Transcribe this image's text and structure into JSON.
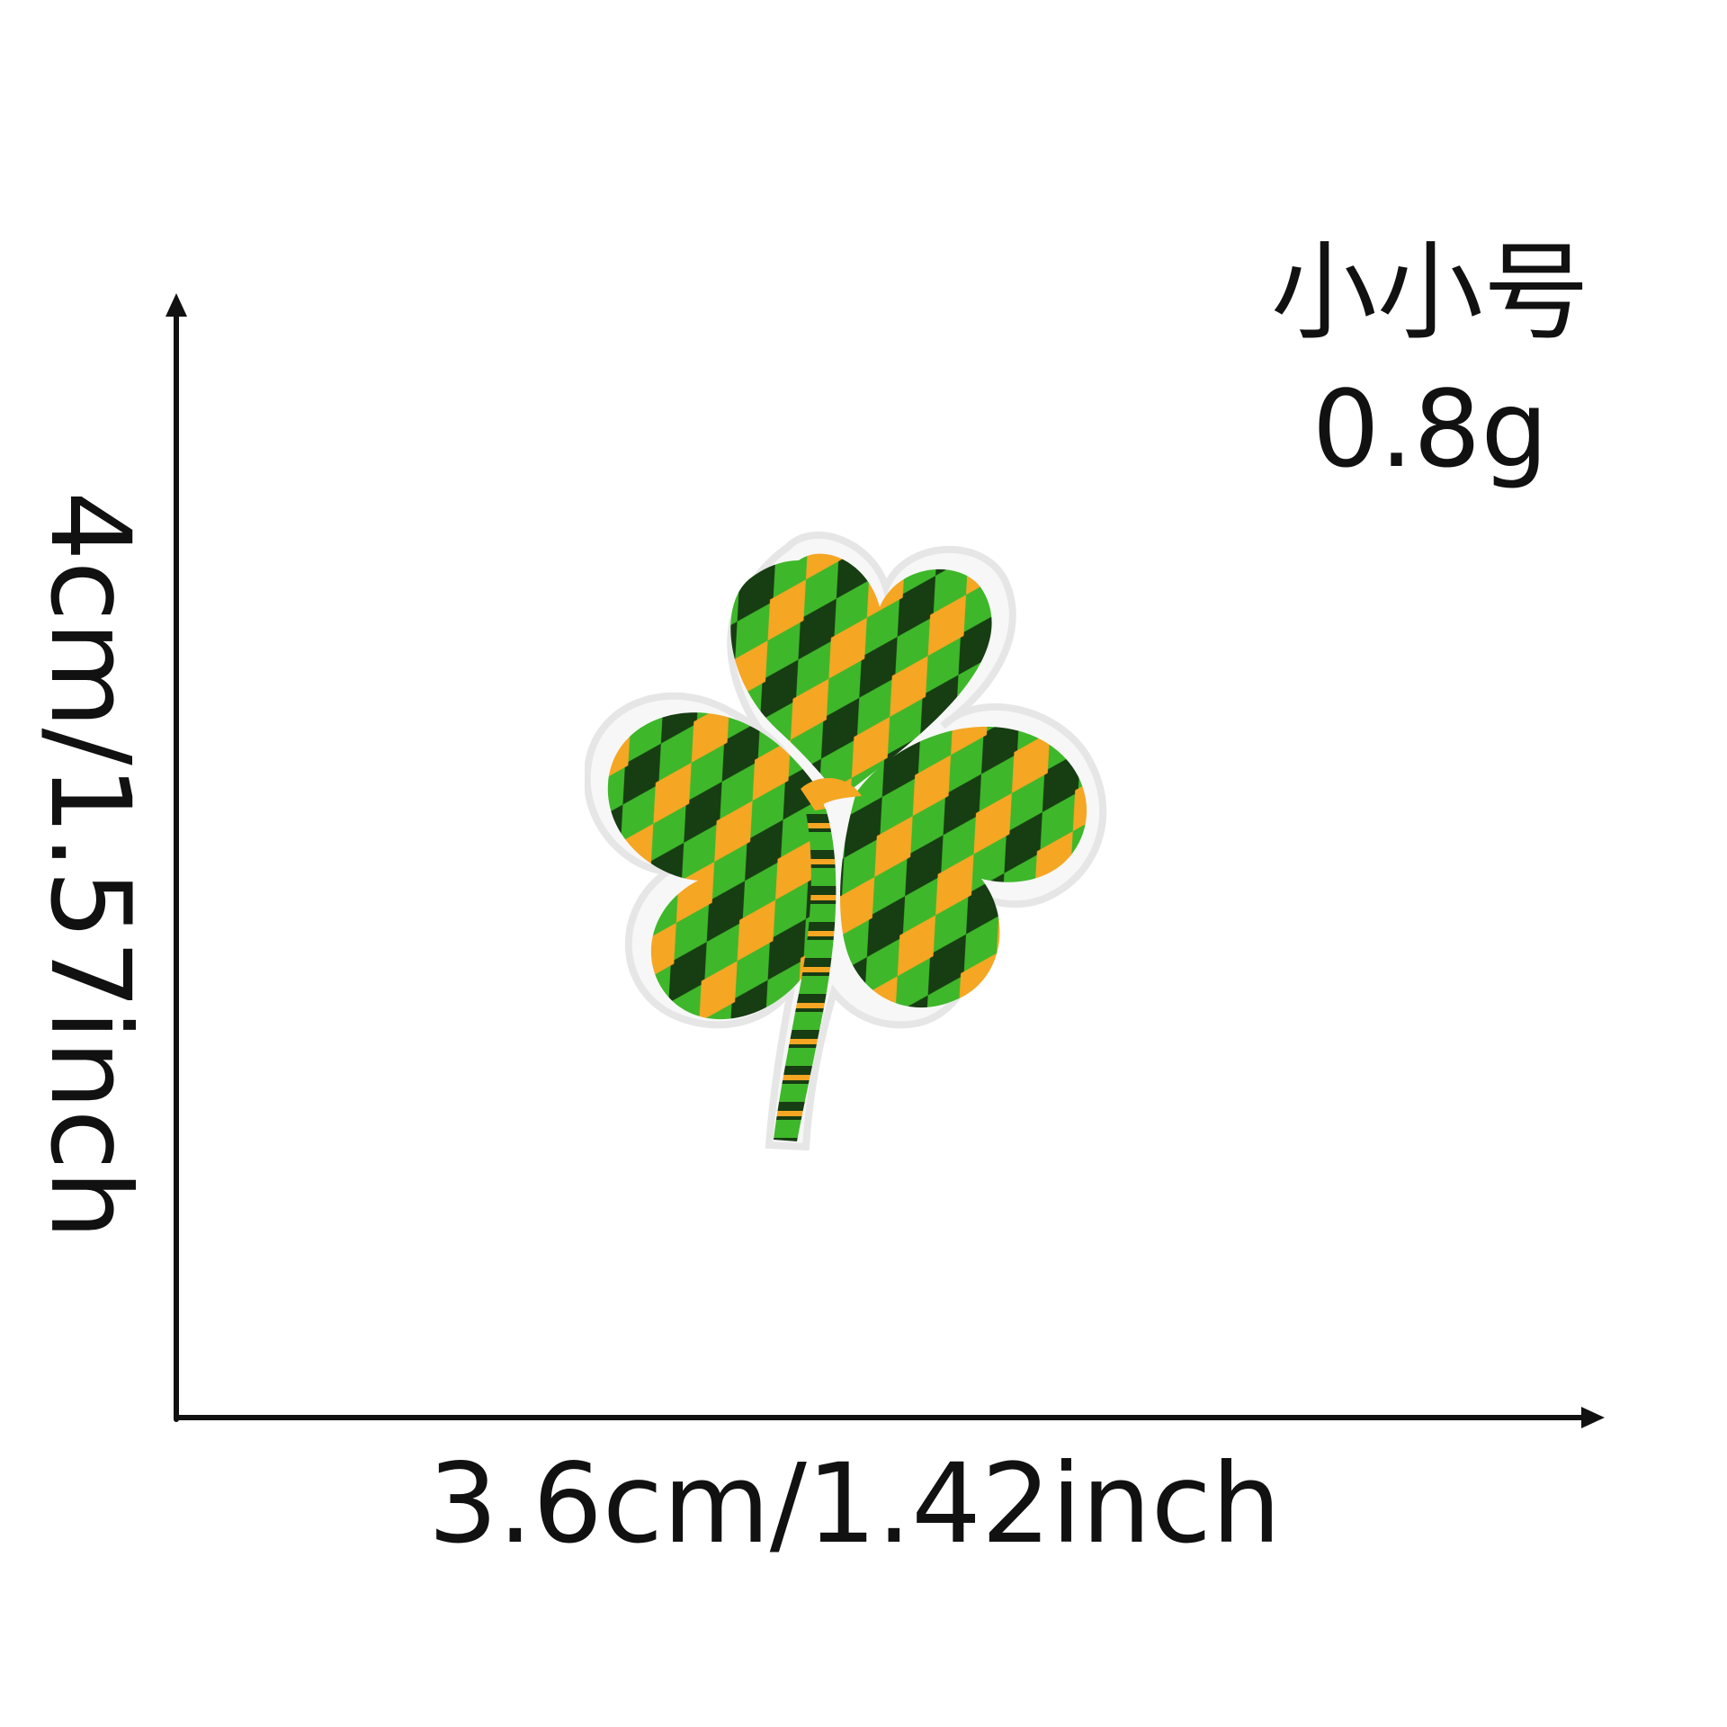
{
  "product": {
    "size_label": "小小号",
    "weight_label": "0.8g"
  },
  "dimensions": {
    "width_label": "3.6cm/1.42inch",
    "height_label": "4cm/1.57inch"
  },
  "colors": {
    "axis": "#111111",
    "border": "#f2f2f2",
    "green": "#3fb72a",
    "dark_green": "#173d13",
    "orange": "#f5a623"
  },
  "icons": {
    "patch": "shamrock-patch-icon"
  }
}
